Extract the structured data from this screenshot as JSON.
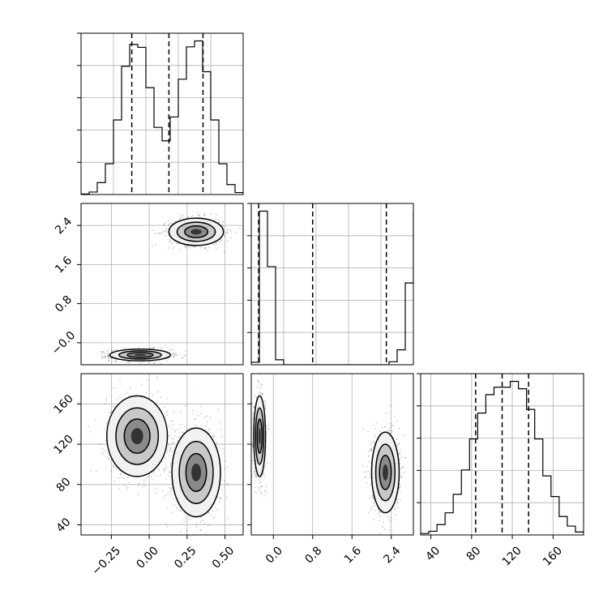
{
  "chart_data": [
    {
      "panel": "x1-histogram",
      "type": "bar",
      "xlim": [
        -0.45,
        0.62
      ],
      "bins_start": -0.45,
      "bin_width": 0.0535,
      "counts": [
        1,
        5,
        24,
        62,
        150,
        258,
        302,
        296,
        215,
        135,
        108,
        156,
        232,
        297,
        309,
        247,
        150,
        62,
        20,
        4
      ],
      "quantiles": [
        -0.115,
        0.13,
        0.355
      ],
      "grid": true
    },
    {
      "panel": "x1-vs-x2",
      "type": "scatter",
      "xlim": [
        -0.45,
        0.62
      ],
      "ylim": [
        -0.45,
        2.85
      ],
      "clusters": [
        {
          "center_x": -0.06,
          "center_y": -0.25,
          "spread_x": 0.1,
          "spread_y": 0.06
        },
        {
          "center_x": 0.31,
          "center_y": 2.27,
          "spread_x": 0.09,
          "spread_y": 0.14
        }
      ],
      "y_tick_labels": [
        "−0.0",
        "0.8",
        "1.6",
        "2.4"
      ],
      "y_ticks": [
        0.0,
        0.8,
        1.6,
        2.4
      ],
      "grid": true
    },
    {
      "panel": "x2-histogram",
      "type": "bar",
      "xlim": [
        -0.45,
        2.85
      ],
      "bins_start": -0.45,
      "bin_width": 0.165,
      "counts": [
        5,
        310,
        198,
        10,
        0,
        0,
        0,
        0,
        0,
        0,
        0,
        0,
        0,
        0,
        0,
        0,
        0,
        6,
        30,
        165,
        306,
        234,
        75,
        12
      ],
      "quantiles": [
        -0.3,
        0.8,
        2.3
      ],
      "grid": true
    },
    {
      "panel": "x1-vs-x3",
      "type": "scatter",
      "xlim": [
        -0.45,
        0.62
      ],
      "ylim": [
        30,
        190
      ],
      "clusters": [
        {
          "center_x": -0.08,
          "center_y": 128,
          "spread_x": 0.1,
          "spread_y": 20
        },
        {
          "center_x": 0.31,
          "center_y": 92,
          "spread_x": 0.08,
          "spread_y": 22
        }
      ],
      "x_tick_labels": [
        "−0.25",
        "0.00",
        "0.25",
        "0.50"
      ],
      "x_ticks": [
        -0.25,
        0.0,
        0.25,
        0.5
      ],
      "y_tick_labels": [
        "40",
        "80",
        "120",
        "160"
      ],
      "y_ticks": [
        40,
        80,
        120,
        160
      ],
      "grid": true
    },
    {
      "panel": "x2-vs-x3",
      "type": "scatter",
      "xlim": [
        -0.45,
        2.85
      ],
      "ylim": [
        30,
        190
      ],
      "clusters": [
        {
          "center_x": -0.28,
          "center_y": 128,
          "spread_x": 0.06,
          "spread_y": 20
        },
        {
          "center_x": 2.28,
          "center_y": 92,
          "spread_x": 0.14,
          "spread_y": 20
        }
      ],
      "x_tick_labels": [
        "0.0",
        "0.8",
        "1.6",
        "2.4"
      ],
      "x_ticks": [
        0.0,
        0.8,
        1.6,
        2.4
      ],
      "grid": true
    },
    {
      "panel": "x3-histogram",
      "type": "bar",
      "xlim": [
        30,
        190
      ],
      "bins_start": 30,
      "bin_width": 8,
      "counts": [
        2,
        5,
        14,
        30,
        55,
        88,
        130,
        165,
        190,
        200,
        200,
        208,
        198,
        170,
        130,
        80,
        52,
        25,
        12,
        4
      ],
      "quantiles": [
        84,
        110,
        136
      ],
      "x_tick_labels": [
        "40",
        "80",
        "120",
        "160"
      ],
      "x_ticks": [
        40,
        80,
        120,
        160
      ],
      "grid": true
    }
  ]
}
